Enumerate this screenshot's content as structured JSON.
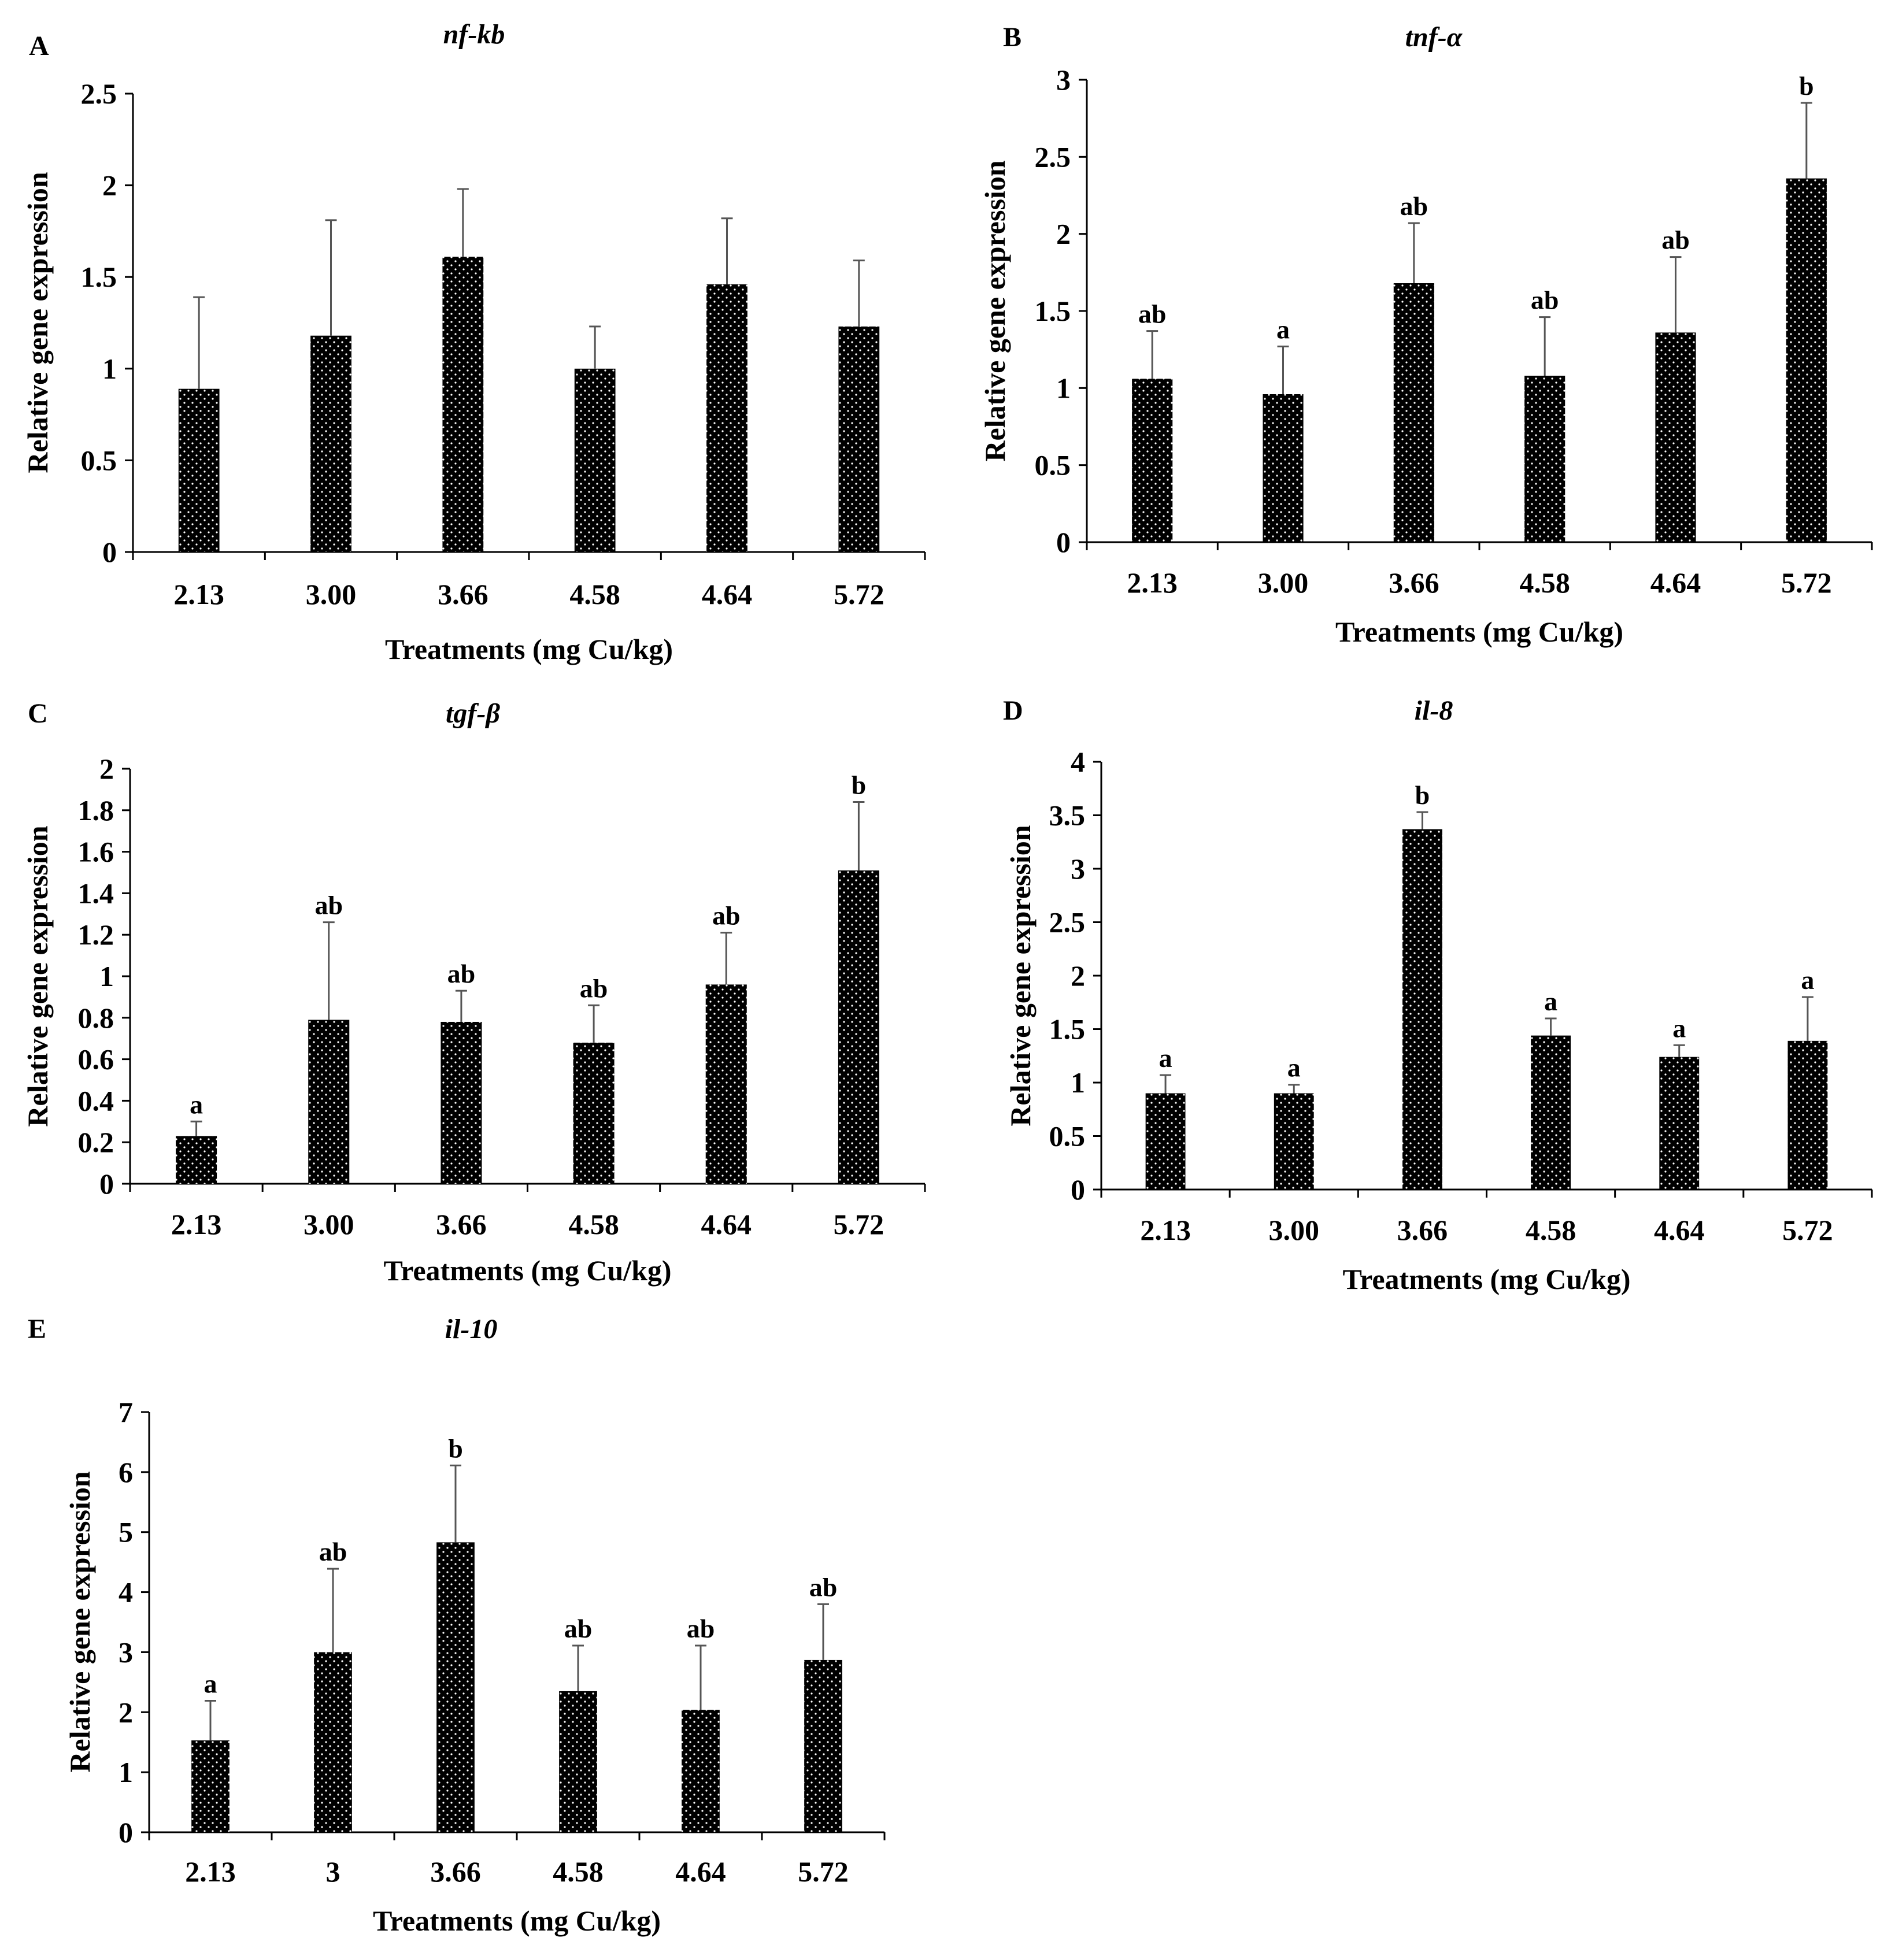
{
  "figure": {
    "xlabel": "Treatments (mg Cu/kg)",
    "ylabel": "Relative gene expression"
  },
  "chart_data": [
    {
      "panel": "A",
      "type": "bar",
      "title": "nf-kb",
      "xlabel": "Treatments (mg Cu/kg)",
      "ylabel": "Relative gene expression",
      "categories": [
        "2.13",
        "3.00",
        "3.66",
        "4.58",
        "4.64",
        "5.72"
      ],
      "values": [
        0.89,
        1.18,
        1.61,
        1.0,
        1.46,
        1.23
      ],
      "errors": [
        0.5,
        0.63,
        0.37,
        0.23,
        0.36,
        0.36
      ],
      "letters": [
        "",
        "",
        "",
        "",
        "",
        ""
      ],
      "ylim": [
        0,
        2.5
      ],
      "yticks": [
        "0",
        "0.5",
        "1",
        "1.5",
        "2",
        "2.5"
      ]
    },
    {
      "panel": "B",
      "type": "bar",
      "title": "tnf-α",
      "xlabel": "Treatments (mg Cu/kg)",
      "ylabel": "Relative gene expression",
      "categories": [
        "2.13",
        "3.00",
        "3.66",
        "4.58",
        "4.64",
        "5.72"
      ],
      "values": [
        1.06,
        0.96,
        1.68,
        1.08,
        1.36,
        2.36
      ],
      "errors": [
        0.31,
        0.31,
        0.39,
        0.38,
        0.49,
        0.49
      ],
      "letters": [
        "ab",
        "a",
        "ab",
        "ab",
        "ab",
        "b"
      ],
      "ylim": [
        0,
        3
      ],
      "yticks": [
        "0",
        "0.5",
        "1",
        "1.5",
        "2",
        "2.5",
        "3"
      ]
    },
    {
      "panel": "C",
      "type": "bar",
      "title": "tgf-β",
      "xlabel": "Treatments (mg Cu/kg)",
      "ylabel": "Relative gene expression",
      "categories": [
        "2.13",
        "3.00",
        "3.66",
        "4.58",
        "4.64",
        "5.72"
      ],
      "values": [
        0.23,
        0.79,
        0.78,
        0.68,
        0.96,
        1.51
      ],
      "errors": [
        0.07,
        0.47,
        0.15,
        0.18,
        0.25,
        0.33
      ],
      "letters": [
        "a",
        "ab",
        "ab",
        "ab",
        "ab",
        "b"
      ],
      "ylim": [
        0,
        2
      ],
      "yticks": [
        "0",
        "0.2",
        "0.4",
        "0.6",
        "0.8",
        "1",
        "1.2",
        "1.4",
        "1.6",
        "1.8",
        "2"
      ]
    },
    {
      "panel": "D",
      "type": "bar",
      "title": "il-8",
      "xlabel": "Treatments (mg Cu/kg)",
      "ylabel": "Relative gene expression",
      "categories": [
        "2.13",
        "3.00",
        "3.66",
        "4.58",
        "4.64",
        "5.72"
      ],
      "values": [
        0.9,
        0.9,
        3.37,
        1.44,
        1.24,
        1.39
      ],
      "errors": [
        0.17,
        0.08,
        0.16,
        0.16,
        0.11,
        0.41
      ],
      "letters": [
        "a",
        "a",
        "b",
        "a",
        "a",
        "a"
      ],
      "ylim": [
        0,
        4
      ],
      "yticks": [
        "0",
        "0.5",
        "1",
        "1.5",
        "2",
        "2.5",
        "3",
        "3.5",
        "4"
      ]
    },
    {
      "panel": "E",
      "type": "bar",
      "title": "il-10",
      "xlabel": "Treatments (mg Cu/kg)",
      "ylabel": "Relative gene expression",
      "categories": [
        "2.13",
        "3",
        "3.66",
        "4.58",
        "4.64",
        "5.72"
      ],
      "values": [
        1.53,
        3.0,
        4.83,
        2.35,
        2.04,
        2.87
      ],
      "errors": [
        0.66,
        1.39,
        1.28,
        0.76,
        1.07,
        0.93
      ],
      "letters": [
        "a",
        "ab",
        "b",
        "ab",
        "ab",
        "ab"
      ],
      "ylim": [
        0,
        7
      ],
      "yticks": [
        "0",
        "1",
        "2",
        "3",
        "4",
        "5",
        "6",
        "7"
      ]
    }
  ]
}
